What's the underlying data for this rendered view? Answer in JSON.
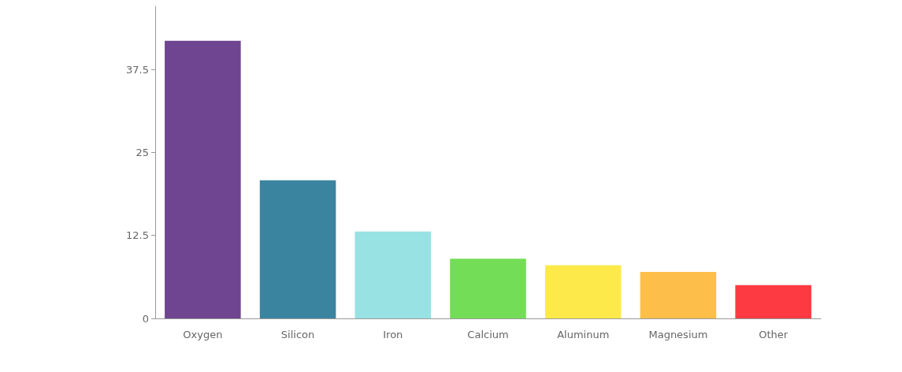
{
  "chart_data": {
    "type": "bar",
    "categories": [
      "Oxygen",
      "Silicon",
      "Iron",
      "Calcium",
      "Aluminum",
      "Magnesium",
      "Other"
    ],
    "values": [
      41.8,
      20.8,
      13.1,
      9.0,
      8.0,
      7.0,
      5.0
    ],
    "colors": [
      "#6f4591",
      "#3a84a0",
      "#98e2e4",
      "#74dd57",
      "#fdea4a",
      "#fdbe4a",
      "#fd3a42"
    ],
    "ylim": [
      0,
      47
    ],
    "yticks": [
      0,
      12.5,
      25,
      37.5
    ],
    "grid": false
  }
}
